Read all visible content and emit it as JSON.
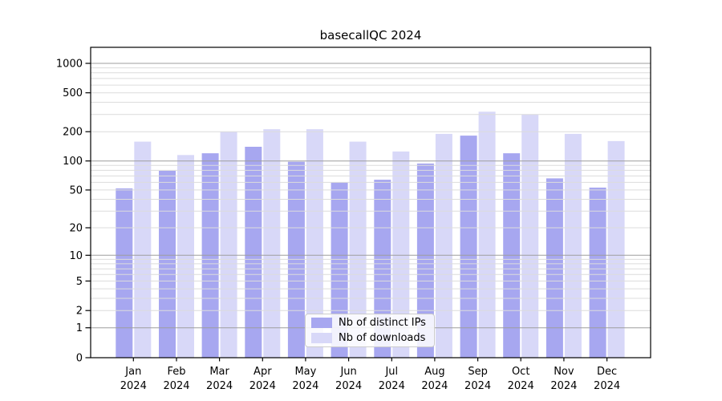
{
  "chart_data": {
    "type": "bar",
    "title": "basecallQC 2024",
    "x_axis": {
      "months": [
        "Jan",
        "Feb",
        "Mar",
        "Apr",
        "May",
        "Jun",
        "Jul",
        "Aug",
        "Sep",
        "Oct",
        "Nov",
        "Dec"
      ],
      "year": "2024"
    },
    "y_axis": {
      "scale": "log1p",
      "ticks": [
        0,
        1,
        2,
        5,
        10,
        20,
        50,
        100,
        200,
        500,
        1000
      ],
      "major_gridlines": [
        1,
        10,
        100,
        1000
      ],
      "minor_gridline_multiples": [
        2,
        3,
        4,
        5,
        6,
        7,
        8,
        9
      ],
      "ylim": [
        0,
        1000
      ]
    },
    "series": [
      {
        "name": "Nb of distinct IPs",
        "color": "#a7a7f0",
        "values": [
          52,
          79,
          120,
          140,
          98,
          60,
          64,
          94,
          182,
          120,
          66,
          53
        ]
      },
      {
        "name": "Nb of downloads",
        "color": "#d8d8f8",
        "values": [
          158,
          115,
          200,
          212,
          212,
          158,
          125,
          190,
          320,
          300,
          190,
          160
        ]
      }
    ],
    "legend": {
      "position": "inside-bottom-center"
    },
    "grid": true,
    "colors": {
      "background": "#ffffff",
      "major_gridline": "#9e9e9e",
      "minor_gridline": "#dcdcdc",
      "axis": "#000000",
      "text": "#000000"
    }
  }
}
